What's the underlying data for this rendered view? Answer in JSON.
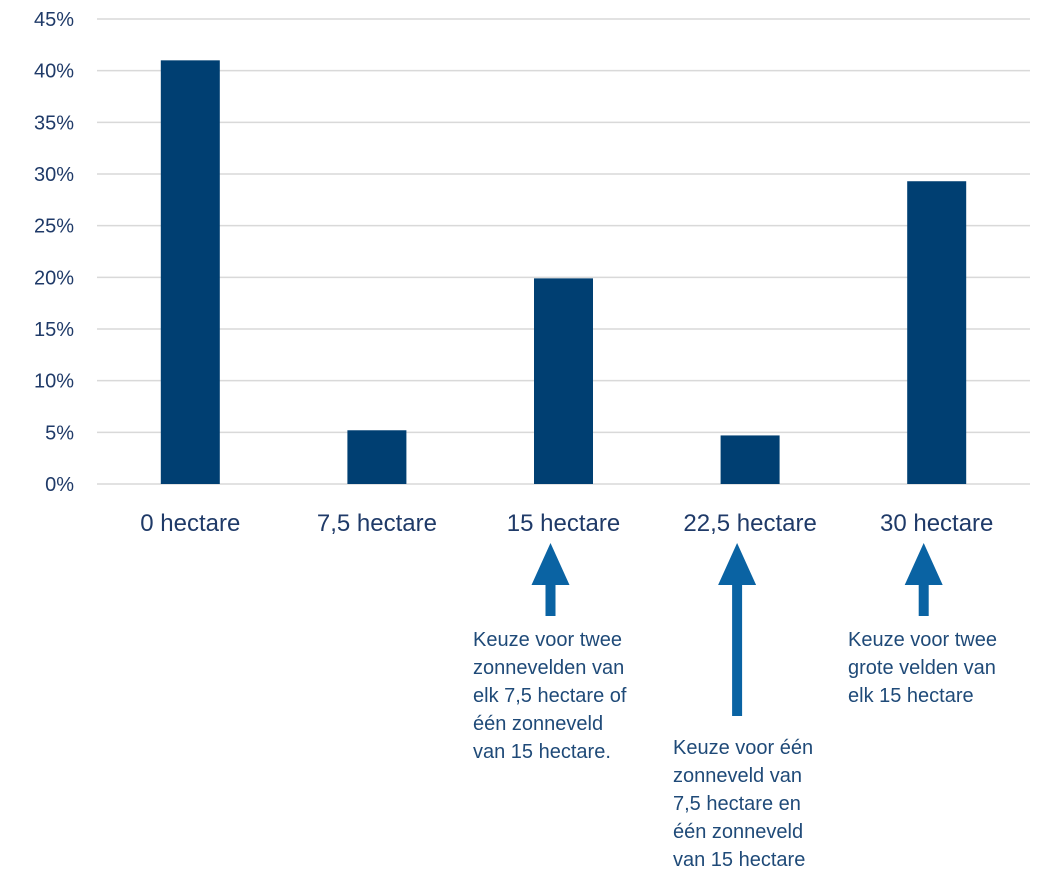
{
  "colors": {
    "bar": "#003f72",
    "arrow": "#0a63a3",
    "grid": "#d9d9d9",
    "text": "#1f3a68"
  },
  "chart_data": {
    "type": "bar",
    "categories": [
      "0 hectare",
      "7,5 hectare",
      "15 hectare",
      "22,5 hectare",
      "30 hectare"
    ],
    "values": [
      41,
      5.2,
      19.9,
      4.7,
      29.3
    ],
    "ylim": [
      0,
      45
    ],
    "yticks": [
      "0%",
      "5%",
      "10%",
      "15%",
      "20%",
      "25%",
      "30%",
      "35%",
      "40%",
      "45%"
    ],
    "grid": true,
    "title": "",
    "xlabel": "",
    "ylabel": ""
  },
  "annotations": [
    {
      "category": "15 hectare",
      "text": "Keuze voor twee zonnevelden van elk 7,5 hectare of één zonneveld van 15 hectare.",
      "lines": [
        "Keuze voor twee",
        "zonnevelden van",
        "elk 7,5 hectare of",
        "één zonneveld",
        "van 15 hectare."
      ]
    },
    {
      "category": "22,5 hectare",
      "text": "Keuze voor één zonneveld van 7,5 hectare en één zonneveld van 15 hectare",
      "lines": [
        "Keuze voor één",
        "zonneveld van",
        "7,5 hectare en",
        "één zonneveld",
        "van 15 hectare"
      ]
    },
    {
      "category": "30 hectare",
      "text": "Keuze voor twee grote velden van elk 15 hectare",
      "lines": [
        "Keuze voor twee",
        "grote velden van",
        "elk 15 hectare"
      ]
    }
  ]
}
